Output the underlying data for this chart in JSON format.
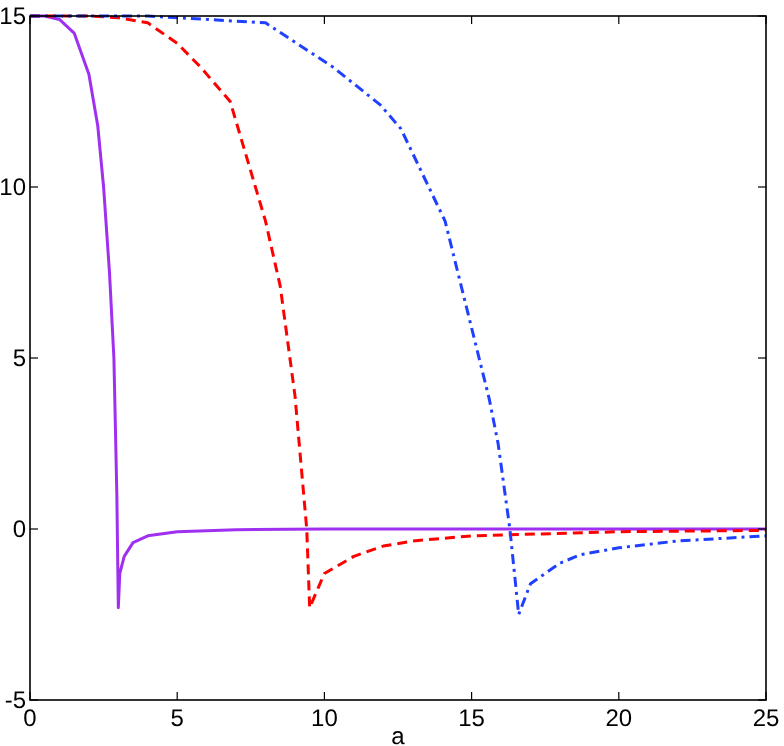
{
  "chart_data": {
    "type": "line",
    "xlabel": "a",
    "xlim": [
      0,
      25
    ],
    "xticks": [
      0,
      5,
      10,
      15,
      20,
      25
    ],
    "ylim": [
      -5,
      15
    ],
    "yticks": [
      -5,
      0,
      5,
      10,
      15
    ],
    "grid": false,
    "series": [
      {
        "color": "#a030f0",
        "line_style": "solid",
        "x": [
          0,
          0.5,
          1,
          1.5,
          2,
          2.3,
          2.5,
          2.7,
          2.85,
          2.95,
          3.0,
          3.05,
          3.2,
          3.5,
          4,
          5,
          7,
          10,
          25
        ],
        "values": [
          15,
          15,
          14.9,
          14.5,
          13.3,
          11.8,
          10,
          7.5,
          5,
          1,
          -2.3,
          -1.3,
          -0.8,
          -0.4,
          -0.2,
          -0.08,
          -0.02,
          0,
          0
        ]
      },
      {
        "color": "#ff0000",
        "line_style": "dashed",
        "x": [
          0,
          2,
          3,
          4,
          5,
          5.8,
          6.8,
          8,
          8.5,
          9,
          9.4,
          9.5,
          10,
          11,
          12,
          13,
          15,
          20,
          25
        ],
        "values": [
          15,
          15,
          14.95,
          14.8,
          14.2,
          13.5,
          12.5,
          9,
          7.1,
          3.9,
          0,
          -2.3,
          -1.3,
          -0.8,
          -0.5,
          -0.35,
          -0.2,
          -0.08,
          -0.04
        ]
      },
      {
        "color": "#2040ff",
        "line_style": "dashdot",
        "x": [
          0,
          4,
          8,
          10.3,
          11.9,
          12.6,
          14.1,
          15.6,
          15.9,
          16.3,
          16.6,
          17,
          18,
          18.7,
          20,
          22,
          25
        ],
        "values": [
          15,
          15,
          14.8,
          13.5,
          12.4,
          11.7,
          9,
          3.8,
          2.5,
          0,
          -2.5,
          -1.6,
          -1,
          -0.75,
          -0.55,
          -0.35,
          -0.2
        ]
      }
    ]
  }
}
